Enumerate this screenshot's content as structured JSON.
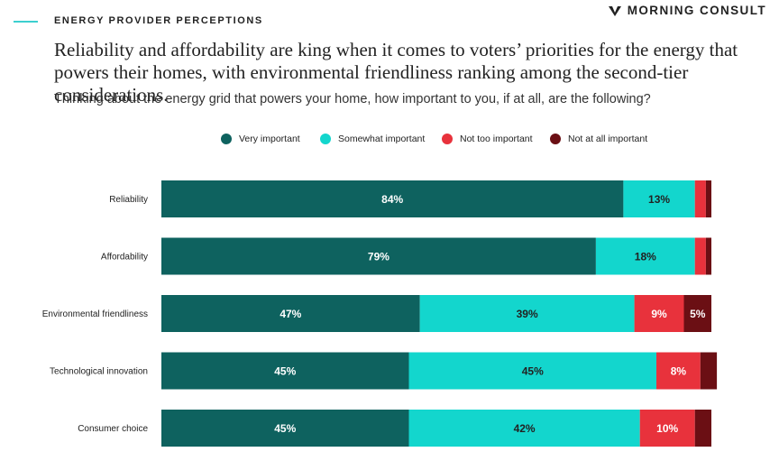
{
  "header": {
    "kicker": "ENERGY PROVIDER PERCEPTIONS",
    "brand": "MORNING CONSULT",
    "brand_icon": "morning-consult-logo-icon",
    "accent_color": "#3ccfcf"
  },
  "headline": "Reliability and affordability are king when it comes to voters’ priorities for the energy that powers their homes, with environmental friendliness ranking among the second-tier considerations.",
  "subtitle": "Thinking about the energy grid that powers your home, how important to you, if at all, are the following?",
  "chart_data": {
    "type": "bar",
    "orientation": "horizontal",
    "stacked": true,
    "xlim": [
      0,
      100
    ],
    "categories": [
      "Reliability",
      "Affordability",
      "Environmental friendliness",
      "Technological innovation",
      "Consumer choice"
    ],
    "series": [
      {
        "name": "Very important",
        "color": "#0e625f",
        "values": [
          84,
          79,
          47,
          45,
          45
        ],
        "labels": [
          "84%",
          "79%",
          "47%",
          "45%",
          "45%"
        ]
      },
      {
        "name": "Somewhat important",
        "color": "#13d6cd",
        "values": [
          13,
          18,
          39,
          45,
          42
        ],
        "labels": [
          "13%",
          "18%",
          "39%",
          "45%",
          "42%"
        ]
      },
      {
        "name": "Not too important",
        "color": "#e8323c",
        "values": [
          2,
          2,
          9,
          8,
          10
        ],
        "labels": [
          "",
          "",
          "9%",
          "8%",
          "10%"
        ]
      },
      {
        "name": "Not at all important",
        "color": "#6b0f14",
        "values": [
          1,
          1,
          5,
          3,
          3
        ],
        "labels": [
          "",
          "",
          "5%",
          "",
          ""
        ]
      }
    ],
    "label_colors": [
      "#ffffff",
      "#222222",
      "#ffffff",
      "#ffffff"
    ]
  }
}
